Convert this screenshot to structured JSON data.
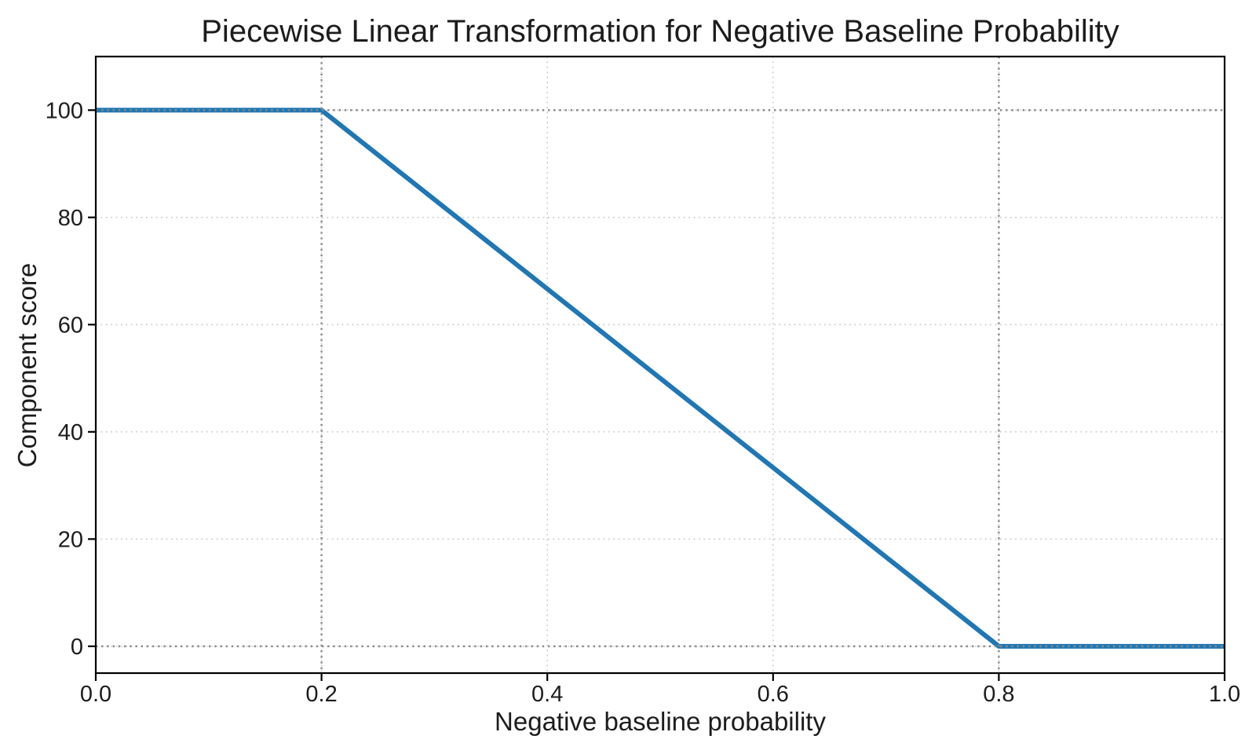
{
  "chart_data": {
    "type": "line",
    "title": "Piecewise Linear Transformation for Negative Baseline Probability",
    "xlabel": "Negative baseline probability",
    "ylabel": "Component score",
    "series": [
      {
        "name": "component-score",
        "color": "#1f77b4",
        "line_width": 6,
        "points": [
          [
            0.0,
            100
          ],
          [
            0.2,
            100
          ],
          [
            0.8,
            0
          ],
          [
            1.0,
            0
          ]
        ]
      }
    ],
    "xlim": [
      0.0,
      1.0
    ],
    "ylim": [
      -5,
      110
    ],
    "xticks": {
      "values": [
        0.0,
        0.2,
        0.4,
        0.6,
        0.8,
        1.0
      ],
      "labels": [
        "0.0",
        "0.2",
        "0.4",
        "0.6",
        "0.8",
        "1.0"
      ]
    },
    "yticks": {
      "values": [
        0,
        20,
        40,
        60,
        80,
        100
      ],
      "labels": [
        "0",
        "20",
        "40",
        "60",
        "80",
        "100"
      ]
    },
    "grid": {
      "style": "dotted",
      "color": "#cbcbcb"
    },
    "reference_lines": {
      "style": "dotted",
      "color": "#8a8a8a",
      "vertical": [
        0.2,
        0.8
      ],
      "horizontal": [
        0,
        100
      ]
    },
    "axis_color": "#000000",
    "background": "#ffffff"
  }
}
